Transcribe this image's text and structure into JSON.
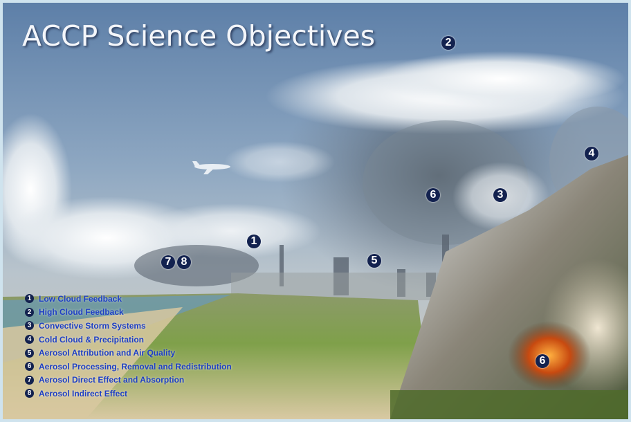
{
  "title": "ACCP Science Objectives",
  "markers": [
    2,
    4,
    6,
    3,
    1,
    5,
    7,
    8,
    6
  ],
  "legend": [
    {
      "number": 1,
      "text": "Low Cloud Feedback"
    },
    {
      "number": 2,
      "text": "High Cloud Feedback"
    },
    {
      "number": 3,
      "text": "Convective Storm Systems"
    },
    {
      "number": 4,
      "text": "Cold Cloud & Precipitation"
    },
    {
      "number": 5,
      "text": "Aerosol Attribution and Air Quality"
    },
    {
      "number": 6,
      "text": "Aerosol Processing, Removal and Redistribution"
    },
    {
      "number": 7,
      "text": "Aerosol Direct Effect and  Absorption"
    },
    {
      "number": 8,
      "text": "Aerosol Indirect Effect"
    }
  ]
}
